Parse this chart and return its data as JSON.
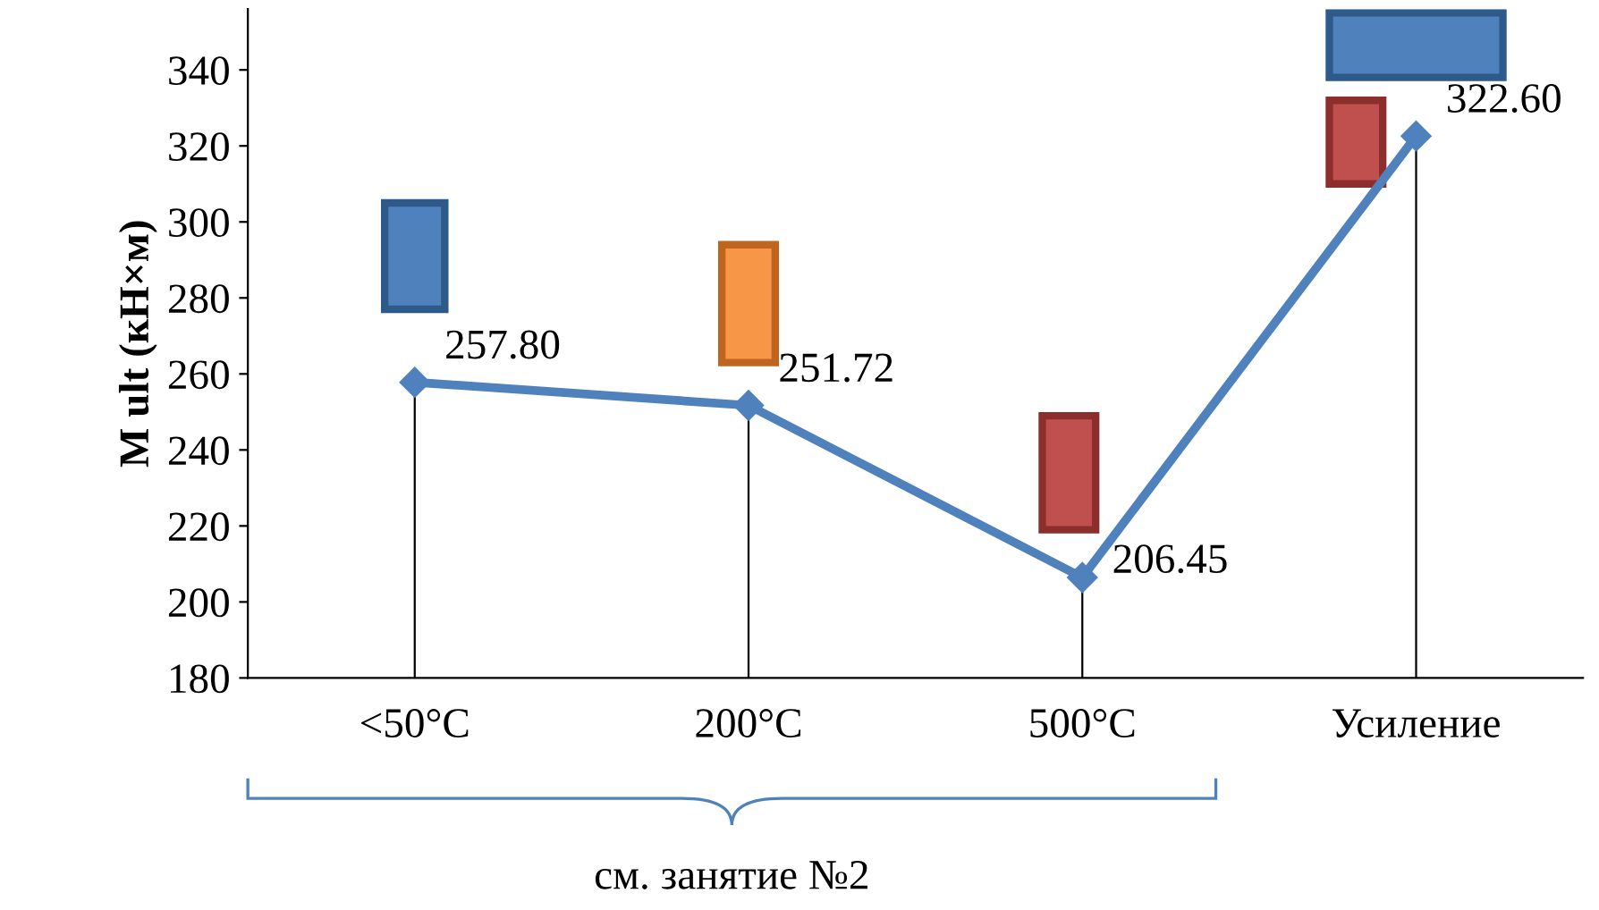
{
  "chart_data": {
    "type": "line",
    "ylabel": "M ult (кН×м)",
    "categories": [
      "<50°C",
      "200°C",
      "500°C",
      "Усиление"
    ],
    "series": [
      {
        "color": "#4f81bd",
        "values": [
          257.8,
          251.72,
          206.45,
          322.6
        ],
        "value_labels": [
          "257.80",
          "251.72",
          "206.45",
          "322.60"
        ]
      }
    ],
    "marker": "diamond",
    "line_style": "solid",
    "legend": false,
    "ylim": [
      180,
      356
    ],
    "yticks": [
      180,
      200,
      220,
      240,
      260,
      280,
      300,
      320,
      340
    ],
    "annotations": [
      "см. занятие №2"
    ]
  }
}
